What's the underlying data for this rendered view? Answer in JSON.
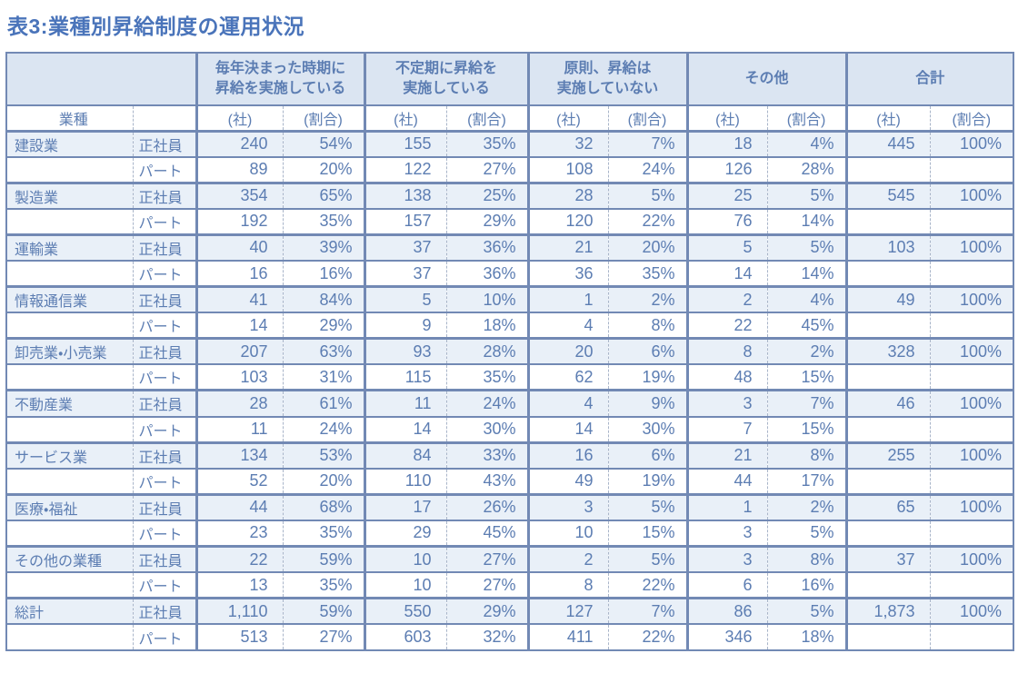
{
  "title": "表3:業種別昇給制度の運用状況",
  "colors": {
    "title_text": "#4a74ba",
    "table_text": "#5c7db2",
    "border": "#7289b4",
    "dashed_separator": "#a9b5c9",
    "header_bg": "#dbe5f2",
    "striped_row_bg": "#e9f0f8"
  },
  "chart_data": {
    "type": "table",
    "title": "表3:業種別昇給制度の運用状況",
    "industry_column_header": "業種",
    "group_headers": [
      "毎年決まった時期に\n昇給を実施している",
      "不定期に昇給を\n実施している",
      "原則、昇給は\n実施していない",
      "その他",
      "合計"
    ],
    "unit_count": "(社)",
    "unit_ratio": "(割合)",
    "rows": [
      {
        "industry": "建設業",
        "type": "正社員",
        "values": [
          "240",
          "54%",
          "155",
          "35%",
          "32",
          "7%",
          "18",
          "4%",
          "445",
          "100%"
        ]
      },
      {
        "industry": "",
        "type": "パート",
        "values": [
          "89",
          "20%",
          "122",
          "27%",
          "108",
          "24%",
          "126",
          "28%",
          "",
          ""
        ]
      },
      {
        "industry": "製造業",
        "type": "正社員",
        "values": [
          "354",
          "65%",
          "138",
          "25%",
          "28",
          "5%",
          "25",
          "5%",
          "545",
          "100%"
        ]
      },
      {
        "industry": "",
        "type": "パート",
        "values": [
          "192",
          "35%",
          "157",
          "29%",
          "120",
          "22%",
          "76",
          "14%",
          "",
          ""
        ]
      },
      {
        "industry": "運輸業",
        "type": "正社員",
        "values": [
          "40",
          "39%",
          "37",
          "36%",
          "21",
          "20%",
          "5",
          "5%",
          "103",
          "100%"
        ]
      },
      {
        "industry": "",
        "type": "パート",
        "values": [
          "16",
          "16%",
          "37",
          "36%",
          "36",
          "35%",
          "14",
          "14%",
          "",
          ""
        ]
      },
      {
        "industry": "情報通信業",
        "type": "正社員",
        "values": [
          "41",
          "84%",
          "5",
          "10%",
          "1",
          "2%",
          "2",
          "4%",
          "49",
          "100%"
        ]
      },
      {
        "industry": "",
        "type": "パート",
        "values": [
          "14",
          "29%",
          "9",
          "18%",
          "4",
          "8%",
          "22",
          "45%",
          "",
          ""
        ]
      },
      {
        "industry": "卸売業・小売業",
        "type": "正社員",
        "values": [
          "207",
          "63%",
          "93",
          "28%",
          "20",
          "6%",
          "8",
          "2%",
          "328",
          "100%"
        ]
      },
      {
        "industry": "",
        "type": "パート",
        "values": [
          "103",
          "31%",
          "115",
          "35%",
          "62",
          "19%",
          "48",
          "15%",
          "",
          ""
        ]
      },
      {
        "industry": "不動産業",
        "type": "正社員",
        "values": [
          "28",
          "61%",
          "11",
          "24%",
          "4",
          "9%",
          "3",
          "7%",
          "46",
          "100%"
        ]
      },
      {
        "industry": "",
        "type": "パート",
        "values": [
          "11",
          "24%",
          "14",
          "30%",
          "14",
          "30%",
          "7",
          "15%",
          "",
          ""
        ]
      },
      {
        "industry": "サービス業",
        "type": "正社員",
        "values": [
          "134",
          "53%",
          "84",
          "33%",
          "16",
          "6%",
          "21",
          "8%",
          "255",
          "100%"
        ]
      },
      {
        "industry": "",
        "type": "パート",
        "values": [
          "52",
          "20%",
          "110",
          "43%",
          "49",
          "19%",
          "44",
          "17%",
          "",
          ""
        ]
      },
      {
        "industry": "医療・福祉",
        "type": "正社員",
        "values": [
          "44",
          "68%",
          "17",
          "26%",
          "3",
          "5%",
          "1",
          "2%",
          "65",
          "100%"
        ]
      },
      {
        "industry": "",
        "type": "パート",
        "values": [
          "23",
          "35%",
          "29",
          "45%",
          "10",
          "15%",
          "3",
          "5%",
          "",
          ""
        ]
      },
      {
        "industry": "その他の業種",
        "type": "正社員",
        "values": [
          "22",
          "59%",
          "10",
          "27%",
          "2",
          "5%",
          "3",
          "8%",
          "37",
          "100%"
        ]
      },
      {
        "industry": "",
        "type": "パート",
        "values": [
          "13",
          "35%",
          "10",
          "27%",
          "8",
          "22%",
          "6",
          "16%",
          "",
          ""
        ]
      },
      {
        "industry": "総計",
        "type": "正社員",
        "values": [
          "1,110",
          "59%",
          "550",
          "29%",
          "127",
          "7%",
          "86",
          "5%",
          "1,873",
          "100%"
        ]
      },
      {
        "industry": "",
        "type": "パート",
        "values": [
          "513",
          "27%",
          "603",
          "32%",
          "411",
          "22%",
          "346",
          "18%",
          "",
          ""
        ]
      }
    ]
  }
}
